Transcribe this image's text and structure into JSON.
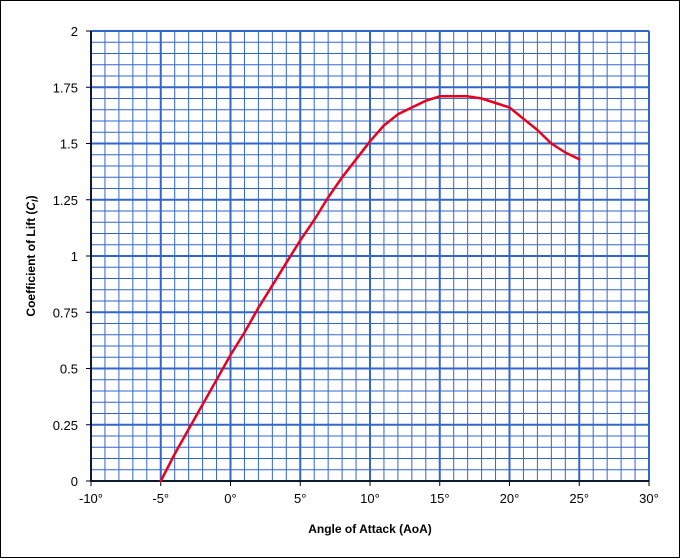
{
  "chart_data": {
    "type": "line",
    "title": "",
    "xlabel": "Angle of Attack (AoA)",
    "ylabel": {
      "prefix": "Coefficient of Lift (",
      "symbol": "C",
      "subscript": "l",
      "suffix": ")"
    },
    "xlim": [
      -10,
      30
    ],
    "ylim": [
      0,
      2
    ],
    "x_tick_labels": [
      "-10°",
      "-5°",
      "0°",
      "5°",
      "10°",
      "15°",
      "20°",
      "25°",
      "30°"
    ],
    "y_tick_labels": [
      "0",
      "0.25",
      "0.5",
      "0.75",
      "1",
      "1.25",
      "1.5",
      "1.75",
      "2"
    ],
    "grid": true,
    "legend": "none",
    "series": [
      {
        "x": [
          -5,
          -4,
          -3,
          -2,
          -1,
          0,
          1,
          2,
          3,
          4,
          5,
          6,
          7,
          8,
          9,
          10,
          11,
          12,
          13,
          14,
          15,
          16,
          17,
          18,
          19,
          20,
          21,
          22,
          23,
          24,
          25
        ],
        "y": [
          0.0,
          0.12,
          0.23,
          0.34,
          0.45,
          0.56,
          0.66,
          0.77,
          0.87,
          0.97,
          1.07,
          1.16,
          1.26,
          1.35,
          1.43,
          1.51,
          1.58,
          1.63,
          1.66,
          1.69,
          1.71,
          1.71,
          1.71,
          1.7,
          1.68,
          1.66,
          1.61,
          1.56,
          1.5,
          1.46,
          1.43
        ]
      }
    ],
    "colors": {
      "line": "#e8001c",
      "major_grid": "#3366cc",
      "minor_grid": "#3366cc",
      "axis": "#000000",
      "background": "#ffffff"
    }
  }
}
